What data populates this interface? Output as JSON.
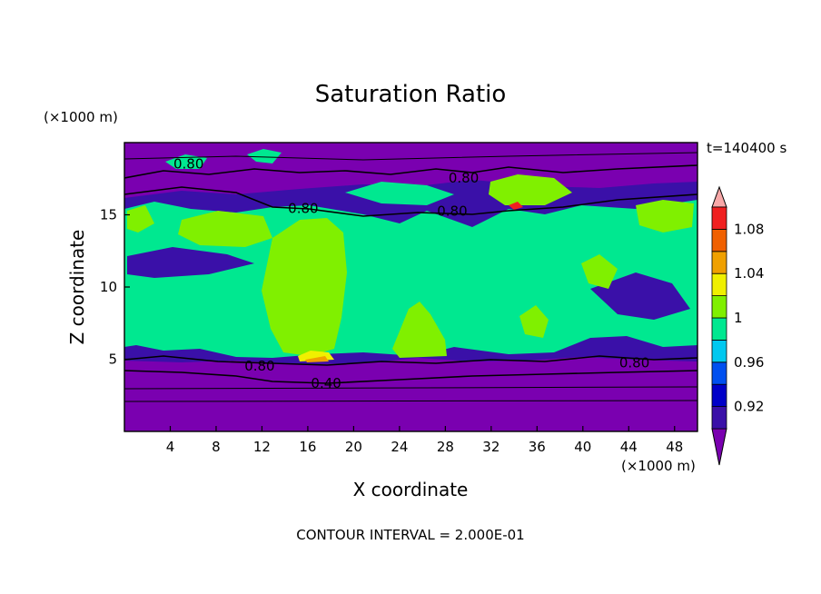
{
  "chart_data": {
    "type": "heatmap",
    "title": "Saturation Ratio",
    "xlabel": "X coordinate",
    "ylabel": "Z coordinate",
    "x_unit": "(×1000 m)",
    "y_unit": "(×1000 m)",
    "time_label": "t=140400 s",
    "contour_interval_label": "CONTOUR INTERVAL = 2.000E-01",
    "xlim": [
      0,
      50
    ],
    "ylim": [
      0,
      20
    ],
    "x_ticks": [
      4,
      8,
      12,
      16,
      20,
      24,
      28,
      32,
      36,
      40,
      44,
      48
    ],
    "y_ticks": [
      5,
      10,
      15
    ],
    "grid": false,
    "colorbar": {
      "levels": [
        0.9,
        0.92,
        0.94,
        0.96,
        0.98,
        1.0,
        1.02,
        1.04,
        1.06,
        1.08,
        1.1
      ],
      "tick_labels": [
        "0.92",
        "0.96",
        "1",
        "1.04",
        "1.08"
      ],
      "tick_values": [
        0.92,
        0.96,
        1.0,
        1.04,
        1.08
      ],
      "colors": [
        "#7a00b0",
        "#3a10a8",
        "#0000c8",
        "#0050f0",
        "#00c8f0",
        "#00e890",
        "#80f000",
        "#f0f000",
        "#f0a000",
        "#f06000",
        "#f02020",
        "#f8a8a8"
      ]
    },
    "contour_labels": [
      {
        "text": "0.80",
        "x": 5.6,
        "y": 18.6
      },
      {
        "text": "0.80",
        "x": 29.6,
        "y": 17.6
      },
      {
        "text": "0.80",
        "x": 15.6,
        "y": 15.5
      },
      {
        "text": "0.80",
        "x": 28.6,
        "y": 15.3
      },
      {
        "text": "0.80",
        "x": 11.8,
        "y": 4.6
      },
      {
        "text": "0.80",
        "x": 44.5,
        "y": 4.8
      },
      {
        "text": "0.40",
        "x": 17.6,
        "y": 3.4
      }
    ]
  }
}
